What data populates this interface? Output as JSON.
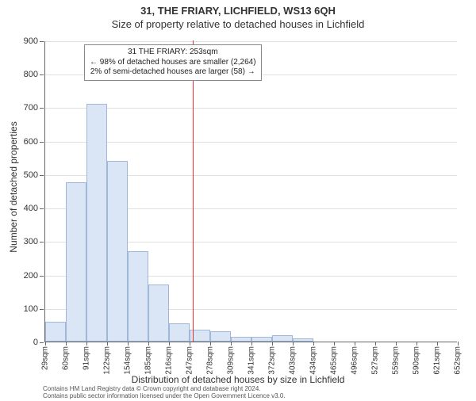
{
  "titles": {
    "main": "31, THE FRIARY, LICHFIELD, WS13 6QH",
    "sub": "Size of property relative to detached houses in Lichfield"
  },
  "axes": {
    "ylabel": "Number of detached properties",
    "xlabel": "Distribution of detached houses by size in Lichfield",
    "ymax": 900,
    "ytick_step": 100,
    "yticks": [
      0,
      100,
      200,
      300,
      400,
      500,
      600,
      700,
      800,
      900
    ],
    "xticks": [
      "29sqm",
      "60sqm",
      "91sqm",
      "122sqm",
      "154sqm",
      "185sqm",
      "216sqm",
      "247sqm",
      "278sqm",
      "309sqm",
      "341sqm",
      "372sqm",
      "403sqm",
      "434sqm",
      "465sqm",
      "496sqm",
      "527sqm",
      "559sqm",
      "590sqm",
      "621sqm",
      "652sqm"
    ]
  },
  "chart": {
    "type": "histogram",
    "bar_fill": "#dae6f5",
    "bar_stroke": "#9fb8d9",
    "grid_color": "#e0e0e0",
    "background_color": "#ffffff",
    "marker_color": "#ee3333",
    "marker_x": 253,
    "x_start": 29,
    "x_step": 31.3,
    "values": [
      60,
      475,
      710,
      540,
      270,
      170,
      55,
      35,
      30,
      15,
      15,
      20,
      10,
      0,
      0,
      0,
      0,
      0,
      0,
      0
    ]
  },
  "annotation": {
    "line1": "31 THE FRIARY: 253sqm",
    "line2": "← 98% of detached houses are smaller (2,264)",
    "line3": "2% of semi-detached houses are larger (58) →"
  },
  "footer": {
    "line1": "Contains HM Land Registry data © Crown copyright and database right 2024.",
    "line2": "Contains public sector information licensed under the Open Government Licence v3.0."
  }
}
